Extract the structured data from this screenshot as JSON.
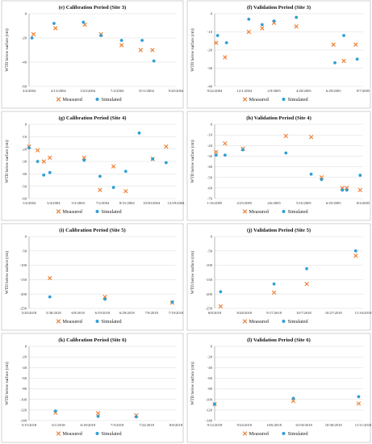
{
  "colors": {
    "measured": "#ED7D31",
    "simulated": "#2E9FD6"
  },
  "legend": {
    "measured": "Measured",
    "simulated": "Simulated"
  },
  "chart_data": [
    {
      "type": "scatter",
      "title": "(e) Calibration Period (Site 3)",
      "ylabel": "WTD below surface (cm)",
      "xlabel": "",
      "x_ticks": [
        "3/4/2004",
        "4/13/2004",
        "5/23/2004",
        "7/2/2004",
        "8/11/2004",
        "9/20/2004"
      ],
      "x_range": [
        0,
        5
      ],
      "ylim": [
        -60,
        0
      ],
      "y_ticks": [
        "0",
        "-20",
        "-40",
        "-60"
      ],
      "grid": true,
      "legend_position": "bottom",
      "series": [
        {
          "name": "Measured",
          "marker": "x",
          "x": [
            0.15,
            0.9,
            1.9,
            2.45,
            3.15,
            3.8,
            4.2
          ],
          "y": [
            -17,
            -12,
            -9,
            -17,
            -26,
            -30,
            -30
          ]
        },
        {
          "name": "Simulated",
          "marker": "dot",
          "x": [
            0.1,
            0.85,
            1.85,
            2.45,
            3.15,
            3.85,
            4.25
          ],
          "y": [
            -20,
            -8,
            -7,
            -18,
            -22,
            -22,
            -39
          ]
        }
      ]
    },
    {
      "type": "scatter",
      "title": "(f) Validation Period (Site 3)",
      "ylabel": "WTD below surface (cm)",
      "xlabel": "",
      "x_ticks": [
        "9/22/2004",
        "12/1/2004",
        "2/9/2005",
        "4/20/2005",
        "6/29/2005",
        "9/7/2005"
      ],
      "x_range": [
        0,
        5
      ],
      "ylim": [
        -40,
        0
      ],
      "y_ticks": [
        "0",
        "-10",
        "-20",
        "-30",
        "-40"
      ],
      "grid": true,
      "legend_position": "bottom",
      "series": [
        {
          "name": "Measured",
          "marker": "x",
          "x": [
            0.05,
            0.35,
            1.15,
            1.6,
            2.0,
            2.75,
            4.0,
            4.35,
            4.75
          ],
          "y": [
            -16,
            -24,
            -10,
            -8,
            -5,
            -7,
            -17,
            -26,
            -17
          ]
        },
        {
          "name": "Simulated",
          "marker": "dot",
          "x": [
            0.1,
            0.4,
            1.15,
            1.6,
            2.0,
            2.75,
            4.05,
            4.35,
            4.8
          ],
          "y": [
            -12,
            -16,
            -3,
            -6,
            -4,
            -2,
            -27,
            -12,
            -25
          ]
        }
      ]
    },
    {
      "type": "scatter",
      "title": "(g) Calibration Period (Site 4)",
      "ylabel": "WTD below surface (cm)",
      "xlabel": "",
      "x_ticks": [
        "1/4/2004",
        "3/4/2004",
        "5/3/2004",
        "7/2/2004",
        "8/31/2004",
        "10/30/2004",
        "12/29/2004"
      ],
      "x_range": [
        0,
        6
      ],
      "ylim": [
        -60,
        0
      ],
      "y_ticks": [
        "0",
        "-10",
        "-20",
        "-30",
        "-40",
        "-50",
        "-60"
      ],
      "grid": true,
      "legend_position": "bottom",
      "series": [
        {
          "name": "Measured",
          "marker": "x",
          "x": [
            0.0,
            0.35,
            0.6,
            0.85,
            2.25,
            2.9,
            3.45,
            3.95,
            5.05,
            5.6
          ],
          "y": [
            -18,
            -21,
            -30,
            -27,
            -27,
            -53,
            -34,
            -54,
            -28,
            -18
          ]
        },
        {
          "name": "Simulated",
          "marker": "dot",
          "x": [
            0.0,
            0.35,
            0.6,
            0.85,
            2.25,
            2.9,
            3.45,
            3.95,
            4.5,
            5.05,
            5.6
          ],
          "y": [
            -19,
            -30,
            -41,
            -39,
            -29,
            -42,
            -51,
            -38,
            -7,
            -28,
            -31
          ]
        }
      ]
    },
    {
      "type": "scatter",
      "title": "(h) Validation Period (Site 4)",
      "ylabel": "WTD below surface (cm)",
      "xlabel": "",
      "x_ticks": [
        "1/16/2005",
        "2/25/2005",
        "4/6/2005",
        "5/16/2005",
        "6/25/2005",
        "8/4/2005"
      ],
      "x_range": [
        0,
        5
      ],
      "ylim": [
        -70,
        0
      ],
      "y_ticks": [
        "0",
        "-10",
        "-20",
        "-30",
        "-40",
        "-50",
        "-60",
        "-70"
      ],
      "grid": true,
      "legend_position": "bottom",
      "series": [
        {
          "name": "Measured",
          "marker": "x",
          "x": [
            0.05,
            0.35,
            0.95,
            2.4,
            3.25,
            3.6,
            4.3,
            4.45,
            4.9
          ],
          "y": [
            -26,
            -18,
            -23,
            -11,
            -12,
            -50,
            -60,
            -60,
            -62
          ]
        },
        {
          "name": "Simulated",
          "marker": "dot",
          "x": [
            0.05,
            0.35,
            0.95,
            2.4,
            3.25,
            3.6,
            4.3,
            4.45,
            4.9
          ],
          "y": [
            -29,
            -29,
            -24,
            -27,
            -47,
            -52,
            -62,
            -62,
            -48
          ]
        }
      ]
    },
    {
      "type": "scatter",
      "title": "(i) Calibration Period (Site 5)",
      "ylabel": "WTD below surface (cm)",
      "xlabel": "",
      "x_ticks": [
        "5/20/2018",
        "5/30/2018",
        "6/9/2018",
        "6/19/2018",
        "6/29/2018",
        "7/9/2018",
        "7/19/2018"
      ],
      "x_range": [
        0,
        6
      ],
      "ylim": [
        -250,
        0
      ],
      "y_ticks": [
        "0",
        "-50",
        "-100",
        "-150",
        "-200",
        "-250"
      ],
      "grid": true,
      "legend_position": "bottom",
      "series": [
        {
          "name": "Measured",
          "marker": "x",
          "x": [
            0.85,
            3.1,
            5.85
          ],
          "y": [
            -145,
            -210,
            -230
          ]
        },
        {
          "name": "Simulated",
          "marker": "dot",
          "x": [
            0.85,
            3.1,
            5.85
          ],
          "y": [
            -210,
            -218,
            -228
          ]
        }
      ]
    },
    {
      "type": "scatter",
      "title": "(j) Validation Period (Site 5)",
      "ylabel": "WTD below surface (cm)",
      "xlabel": "",
      "x_ticks": [
        "8/8/2018",
        "8/28/2018",
        "9/17/2018",
        "10/7/2018",
        "10/27/2018",
        "11/16/2018"
      ],
      "x_range": [
        0,
        5
      ],
      "ylim": [
        -250,
        0
      ],
      "y_ticks": [
        "0",
        "-50",
        "-100",
        "-150",
        "-200",
        "-250"
      ],
      "grid": true,
      "legend_position": "bottom",
      "series": [
        {
          "name": "Measured",
          "marker": "x",
          "x": [
            0.2,
            2.0,
            3.1,
            4.75
          ],
          "y": [
            -243,
            -195,
            -165,
            -67
          ]
        },
        {
          "name": "Simulated",
          "marker": "dot",
          "x": [
            0.2,
            2.0,
            3.1,
            4.75
          ],
          "y": [
            -192,
            -165,
            -112,
            -50
          ]
        }
      ]
    },
    {
      "type": "scatter",
      "title": "(k) Calibration Period (Site 6)",
      "ylabel": "WTD below surface (cm)",
      "xlabel": "",
      "x_ticks": [
        "5/15/2018",
        "6/1/2018",
        "6/18/2018",
        "7/5/2018",
        "7/22/2018",
        "8/8/2018"
      ],
      "x_range": [
        0,
        5
      ],
      "ylim": [
        -140,
        0
      ],
      "y_ticks": [
        "0",
        "-20",
        "-40",
        "-60",
        "-80",
        "-100",
        "-120",
        "-140"
      ],
      "grid": true,
      "legend_position": "bottom",
      "series": [
        {
          "name": "Measured",
          "marker": "x",
          "x": [
            0.9,
            2.35,
            3.65
          ],
          "y": [
            -125,
            -126,
            -130
          ]
        },
        {
          "name": "Simulated",
          "marker": "dot",
          "x": [
            0.9,
            2.35,
            3.65
          ],
          "y": [
            -122,
            -132,
            -133
          ]
        }
      ]
    },
    {
      "type": "scatter",
      "title": "(l) Validation Period (Site 6)",
      "ylabel": "WTD below surface (cm)",
      "xlabel": "",
      "x_ticks": [
        "9/12/2018",
        "9/24/2018",
        "10/6/2018",
        "10/18/2018",
        "10/30/2018",
        "11/11/2018"
      ],
      "x_range": [
        0,
        5
      ],
      "ylim": [
        -140,
        0
      ],
      "y_ticks": [
        "0",
        "-20",
        "-40",
        "-60",
        "-80",
        "-100",
        "-120",
        "-140"
      ],
      "grid": true,
      "legend_position": "bottom",
      "series": [
        {
          "name": "Measured",
          "marker": "x",
          "x": [
            0.0,
            2.65,
            4.85
          ],
          "y": [
            -109,
            -103,
            -108
          ]
        },
        {
          "name": "Simulated",
          "marker": "dot",
          "x": [
            0.0,
            2.65,
            4.85
          ],
          "y": [
            -109,
            -98,
            -95
          ]
        }
      ]
    }
  ]
}
